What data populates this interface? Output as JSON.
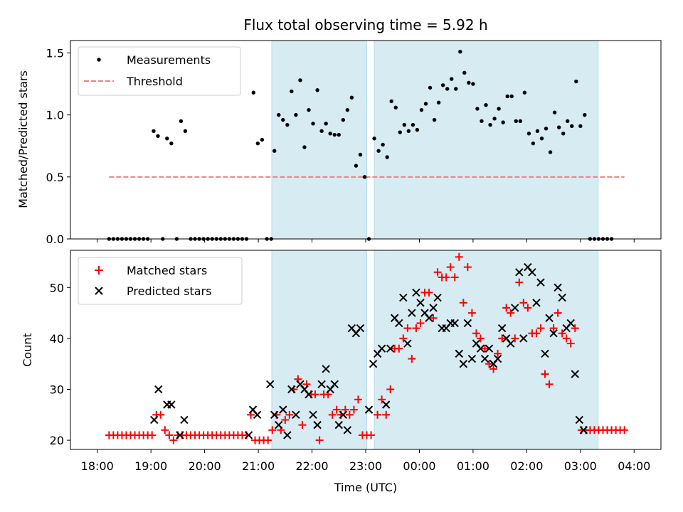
{
  "chart_data": {
    "title": "Flux total observing time = 5.92 h",
    "xlabel": "Time (UTC)",
    "x_unit": "hours after 18:00 UTC on first night",
    "xlim": [
      -0.5,
      10.5
    ],
    "x_ticks": [
      {
        "label": "18:00",
        "value": 0
      },
      {
        "label": "19:00",
        "value": 1
      },
      {
        "label": "20:00",
        "value": 2
      },
      {
        "label": "21:00",
        "value": 3
      },
      {
        "label": "22:00",
        "value": 4
      },
      {
        "label": "23:00",
        "value": 5
      },
      {
        "label": "00:00",
        "value": 6
      },
      {
        "label": "01:00",
        "value": 7
      },
      {
        "label": "02:00",
        "value": 8
      },
      {
        "label": "03:00",
        "value": 9
      },
      {
        "label": "04:00",
        "value": 10
      }
    ],
    "shaded_intervals": [
      [
        3.25,
        5.02
      ],
      [
        5.16,
        9.33
      ]
    ],
    "shade_color": "#add8e6",
    "top": {
      "type": "scatter",
      "ylabel": "Matched/Predicted stars",
      "ylim": [
        0,
        1.6
      ],
      "y_ticks": [
        "0.0",
        "0.5",
        "1.0",
        "1.5"
      ],
      "y_tick_values": [
        0,
        0.5,
        1.0,
        1.5
      ],
      "legend": {
        "placement": "top-left",
        "items": [
          "Measurements",
          "Threshold"
        ]
      },
      "threshold": {
        "name": "Threshold",
        "value": 0.5,
        "x_range": [
          0.22,
          9.82
        ],
        "color": "#f08080"
      },
      "measurements": [
        [
          0.22,
          0
        ],
        [
          0.3,
          0
        ],
        [
          0.38,
          0
        ],
        [
          0.46,
          0
        ],
        [
          0.54,
          0
        ],
        [
          0.62,
          0
        ],
        [
          0.7,
          0
        ],
        [
          0.78,
          0
        ],
        [
          0.86,
          0
        ],
        [
          0.94,
          0
        ],
        [
          1.05,
          0.87
        ],
        [
          1.13,
          0.83
        ],
        [
          1.22,
          0
        ],
        [
          1.3,
          0.81
        ],
        [
          1.38,
          0.77
        ],
        [
          1.48,
          0
        ],
        [
          1.56,
          0.95
        ],
        [
          1.64,
          0.87
        ],
        [
          1.74,
          0
        ],
        [
          1.82,
          0
        ],
        [
          1.9,
          0
        ],
        [
          1.98,
          0
        ],
        [
          2.06,
          0
        ],
        [
          2.14,
          0
        ],
        [
          2.22,
          0
        ],
        [
          2.3,
          0
        ],
        [
          2.38,
          0
        ],
        [
          2.46,
          0
        ],
        [
          2.54,
          0
        ],
        [
          2.62,
          0
        ],
        [
          2.7,
          0
        ],
        [
          2.78,
          0
        ],
        [
          2.91,
          1.18
        ],
        [
          2.99,
          0.77
        ],
        [
          3.07,
          0.8
        ],
        [
          3.16,
          0
        ],
        [
          3.24,
          0
        ],
        [
          3.3,
          0.71
        ],
        [
          3.38,
          1.0
        ],
        [
          3.46,
          0.96
        ],
        [
          3.54,
          0.92
        ],
        [
          3.62,
          1.19
        ],
        [
          3.7,
          1.0
        ],
        [
          3.78,
          1.28
        ],
        [
          3.86,
          0.74
        ],
        [
          3.94,
          1.04
        ],
        [
          4.02,
          0.93
        ],
        [
          4.1,
          1.2
        ],
        [
          4.18,
          0.87
        ],
        [
          4.26,
          0.93
        ],
        [
          4.34,
          0.85
        ],
        [
          4.42,
          0.84
        ],
        [
          4.5,
          0.84
        ],
        [
          4.58,
          0.96
        ],
        [
          4.66,
          1.04
        ],
        [
          4.74,
          1.14
        ],
        [
          4.82,
          0.59
        ],
        [
          4.9,
          0.68
        ],
        [
          4.98,
          0.5
        ],
        [
          5.06,
          0
        ],
        [
          5.16,
          0.81
        ],
        [
          5.24,
          0.71
        ],
        [
          5.32,
          0.76
        ],
        [
          5.4,
          0.66
        ],
        [
          5.48,
          1.11
        ],
        [
          5.56,
          1.06
        ],
        [
          5.64,
          0.86
        ],
        [
          5.72,
          0.92
        ],
        [
          5.8,
          0.87
        ],
        [
          5.88,
          0.92
        ],
        [
          5.96,
          0.88
        ],
        [
          6.04,
          1.04
        ],
        [
          6.12,
          1.09
        ],
        [
          6.2,
          1.22
        ],
        [
          6.28,
          0.96
        ],
        [
          6.36,
          1.1
        ],
        [
          6.44,
          1.24
        ],
        [
          6.52,
          1.21
        ],
        [
          6.6,
          1.29
        ],
        [
          6.68,
          1.21
        ],
        [
          6.76,
          1.51
        ],
        [
          6.84,
          1.34
        ],
        [
          6.92,
          1.26
        ],
        [
          7.0,
          1.25
        ],
        [
          7.08,
          1.05
        ],
        [
          7.16,
          0.95
        ],
        [
          7.24,
          1.08
        ],
        [
          7.32,
          0.92
        ],
        [
          7.4,
          0.97
        ],
        [
          7.48,
          1.05
        ],
        [
          7.56,
          0.94
        ],
        [
          7.64,
          1.15
        ],
        [
          7.72,
          1.15
        ],
        [
          7.8,
          0.95
        ],
        [
          7.88,
          0.95
        ],
        [
          7.96,
          1.18
        ],
        [
          8.04,
          0.85
        ],
        [
          8.12,
          0.77
        ],
        [
          8.2,
          0.87
        ],
        [
          8.28,
          0.81
        ],
        [
          8.36,
          0.89
        ],
        [
          8.44,
          0.7
        ],
        [
          8.52,
          1.02
        ],
        [
          8.6,
          0.9
        ],
        [
          8.68,
          0.85
        ],
        [
          8.76,
          0.95
        ],
        [
          8.84,
          0.91
        ],
        [
          8.92,
          1.27
        ],
        [
          9.0,
          0.91
        ],
        [
          9.08,
          1.0
        ],
        [
          9.18,
          0
        ],
        [
          9.26,
          0
        ],
        [
          9.34,
          0
        ],
        [
          9.42,
          0
        ],
        [
          9.5,
          0
        ],
        [
          9.58,
          0
        ]
      ]
    },
    "bottom": {
      "type": "scatter",
      "ylabel": "Count",
      "ylim": [
        18.2,
        57.3
      ],
      "y_ticks": [
        "20",
        "30",
        "40",
        "50"
      ],
      "y_tick_values": [
        20,
        30,
        40,
        50
      ],
      "legend": {
        "placement": "top-left",
        "items": [
          "Matched stars",
          "Predicted stars"
        ]
      },
      "matched_color": "#ff0000",
      "predicted_color": "#000000",
      "matched": [
        [
          0.22,
          21
        ],
        [
          0.3,
          21
        ],
        [
          0.38,
          21
        ],
        [
          0.46,
          21
        ],
        [
          0.54,
          21
        ],
        [
          0.62,
          21
        ],
        [
          0.7,
          21
        ],
        [
          0.78,
          21
        ],
        [
          0.86,
          21
        ],
        [
          0.94,
          21
        ],
        [
          1.02,
          21
        ],
        [
          1.1,
          25
        ],
        [
          1.18,
          25
        ],
        [
          1.26,
          22
        ],
        [
          1.34,
          21
        ],
        [
          1.42,
          20
        ],
        [
          1.5,
          21
        ],
        [
          1.58,
          21
        ],
        [
          1.66,
          21
        ],
        [
          1.74,
          21
        ],
        [
          1.82,
          21
        ],
        [
          1.9,
          21
        ],
        [
          1.98,
          21
        ],
        [
          2.06,
          21
        ],
        [
          2.14,
          21
        ],
        [
          2.22,
          21
        ],
        [
          2.3,
          21
        ],
        [
          2.38,
          21
        ],
        [
          2.46,
          21
        ],
        [
          2.54,
          21
        ],
        [
          2.62,
          21
        ],
        [
          2.7,
          21
        ],
        [
          2.78,
          21
        ],
        [
          2.86,
          25
        ],
        [
          2.94,
          20
        ],
        [
          3.02,
          20
        ],
        [
          3.1,
          20
        ],
        [
          3.18,
          20
        ],
        [
          3.26,
          22
        ],
        [
          3.34,
          25
        ],
        [
          3.42,
          22
        ],
        [
          3.5,
          24
        ],
        [
          3.58,
          25
        ],
        [
          3.66,
          30
        ],
        [
          3.74,
          32
        ],
        [
          3.82,
          23
        ],
        [
          3.9,
          31
        ],
        [
          3.98,
          29
        ],
        [
          4.06,
          29
        ],
        [
          4.14,
          20
        ],
        [
          4.22,
          29
        ],
        [
          4.3,
          29
        ],
        [
          4.38,
          25
        ],
        [
          4.46,
          26
        ],
        [
          4.54,
          25
        ],
        [
          4.62,
          26
        ],
        [
          4.7,
          25
        ],
        [
          4.78,
          26
        ],
        [
          4.86,
          28
        ],
        [
          4.94,
          21
        ],
        [
          5.02,
          21
        ],
        [
          5.1,
          21
        ],
        [
          5.22,
          25
        ],
        [
          5.3,
          28
        ],
        [
          5.38,
          25
        ],
        [
          5.46,
          30
        ],
        [
          5.54,
          38
        ],
        [
          5.62,
          38
        ],
        [
          5.7,
          40
        ],
        [
          5.78,
          42
        ],
        [
          5.86,
          36
        ],
        [
          5.94,
          42
        ],
        [
          6.02,
          43
        ],
        [
          6.1,
          49
        ],
        [
          6.18,
          49
        ],
        [
          6.26,
          44
        ],
        [
          6.34,
          53
        ],
        [
          6.42,
          52
        ],
        [
          6.5,
          52
        ],
        [
          6.58,
          54
        ],
        [
          6.66,
          52
        ],
        [
          6.74,
          56
        ],
        [
          6.82,
          47
        ],
        [
          6.9,
          54
        ],
        [
          6.98,
          45
        ],
        [
          7.06,
          41
        ],
        [
          7.14,
          40
        ],
        [
          7.22,
          38
        ],
        [
          7.3,
          35
        ],
        [
          7.38,
          34
        ],
        [
          7.46,
          37
        ],
        [
          7.54,
          40
        ],
        [
          7.62,
          46
        ],
        [
          7.7,
          45
        ],
        [
          7.78,
          40
        ],
        [
          7.86,
          51
        ],
        [
          7.94,
          47
        ],
        [
          8.02,
          46
        ],
        [
          8.1,
          41
        ],
        [
          8.18,
          41
        ],
        [
          8.26,
          42
        ],
        [
          8.34,
          33
        ],
        [
          8.42,
          31
        ],
        [
          8.5,
          42
        ],
        [
          8.58,
          45
        ],
        [
          8.66,
          41
        ],
        [
          8.74,
          40
        ],
        [
          8.82,
          39
        ],
        [
          8.9,
          42
        ],
        [
          9.02,
          22
        ],
        [
          9.1,
          22
        ],
        [
          9.18,
          22
        ],
        [
          9.26,
          22
        ],
        [
          9.34,
          22
        ],
        [
          9.42,
          22
        ],
        [
          9.5,
          22
        ],
        [
          9.58,
          22
        ],
        [
          9.66,
          22
        ],
        [
          9.74,
          22
        ],
        [
          9.82,
          22
        ]
      ],
      "predicted": [
        [
          1.06,
          24
        ],
        [
          1.14,
          30
        ],
        [
          1.3,
          27
        ],
        [
          1.38,
          27
        ],
        [
          1.54,
          21
        ],
        [
          1.62,
          24
        ],
        [
          2.82,
          21
        ],
        [
          2.9,
          26
        ],
        [
          2.98,
          25
        ],
        [
          3.22,
          31
        ],
        [
          3.3,
          25
        ],
        [
          3.38,
          23
        ],
        [
          3.46,
          26
        ],
        [
          3.54,
          21
        ],
        [
          3.62,
          30
        ],
        [
          3.7,
          25
        ],
        [
          3.78,
          31
        ],
        [
          3.86,
          30
        ],
        [
          3.94,
          29
        ],
        [
          4.02,
          25
        ],
        [
          4.1,
          23
        ],
        [
          4.18,
          31
        ],
        [
          4.26,
          34
        ],
        [
          4.34,
          30
        ],
        [
          4.42,
          31
        ],
        [
          4.5,
          23
        ],
        [
          4.58,
          25
        ],
        [
          4.66,
          22
        ],
        [
          4.74,
          42
        ],
        [
          4.82,
          41
        ],
        [
          4.9,
          42
        ],
        [
          5.06,
          26
        ],
        [
          5.14,
          35
        ],
        [
          5.22,
          37
        ],
        [
          5.3,
          38
        ],
        [
          5.38,
          27
        ],
        [
          5.46,
          38
        ],
        [
          5.54,
          44
        ],
        [
          5.62,
          43
        ],
        [
          5.7,
          48
        ],
        [
          5.78,
          39
        ],
        [
          5.86,
          45
        ],
        [
          5.94,
          49
        ],
        [
          6.02,
          47
        ],
        [
          6.1,
          45
        ],
        [
          6.18,
          44
        ],
        [
          6.26,
          46
        ],
        [
          6.34,
          48
        ],
        [
          6.42,
          42
        ],
        [
          6.5,
          42
        ],
        [
          6.58,
          43
        ],
        [
          6.66,
          43
        ],
        [
          6.74,
          37
        ],
        [
          6.82,
          35
        ],
        [
          6.9,
          43
        ],
        [
          6.98,
          36
        ],
        [
          7.06,
          39
        ],
        [
          7.14,
          38
        ],
        [
          7.22,
          36
        ],
        [
          7.3,
          38
        ],
        [
          7.38,
          35
        ],
        [
          7.46,
          36
        ],
        [
          7.54,
          42
        ],
        [
          7.62,
          40
        ],
        [
          7.7,
          39
        ],
        [
          7.78,
          46
        ],
        [
          7.86,
          53
        ],
        [
          7.94,
          40
        ],
        [
          8.02,
          54
        ],
        [
          8.1,
          53
        ],
        [
          8.18,
          47
        ],
        [
          8.26,
          51
        ],
        [
          8.34,
          37
        ],
        [
          8.42,
          44
        ],
        [
          8.5,
          41
        ],
        [
          8.58,
          50
        ],
        [
          8.66,
          48
        ],
        [
          8.74,
          42
        ],
        [
          8.82,
          43
        ],
        [
          8.9,
          33
        ],
        [
          8.98,
          24
        ],
        [
          9.06,
          22
        ]
      ]
    }
  }
}
